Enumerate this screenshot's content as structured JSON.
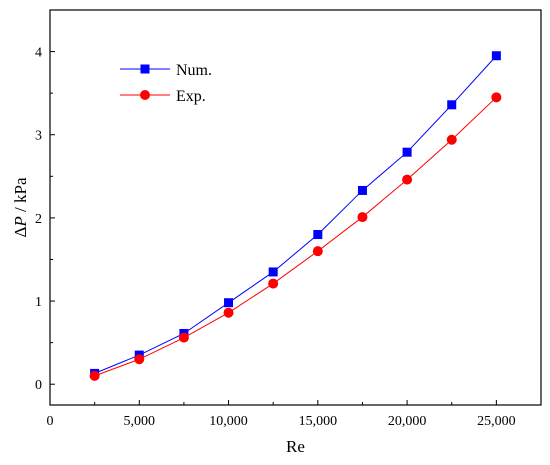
{
  "chart_data": {
    "type": "line",
    "xlabel": "Re",
    "ylabel_parts": [
      "Δ",
      "P",
      " / kPa"
    ],
    "xlim": [
      0,
      27500
    ],
    "ylim": [
      -0.25,
      4.5
    ],
    "x_ticks": [
      0,
      5000,
      10000,
      15000,
      20000,
      25000
    ],
    "x_tick_labels": [
      "0",
      "5,000",
      "10,000",
      "15,000",
      "20,000",
      "25,000"
    ],
    "y_ticks": [
      0,
      1,
      2,
      3,
      4
    ],
    "y_tick_labels": [
      "0",
      "1",
      "2",
      "3",
      "4"
    ],
    "x": [
      2500,
      5000,
      7500,
      10000,
      12500,
      15000,
      17500,
      20000,
      22500,
      25000
    ],
    "series": [
      {
        "name": "Num.",
        "marker": "square",
        "color": "#0000ff",
        "values": [
          0.13,
          0.35,
          0.61,
          0.98,
          1.35,
          1.8,
          2.33,
          2.79,
          3.36,
          3.95
        ]
      },
      {
        "name": "Exp.",
        "marker": "circle",
        "color": "#ff0000",
        "values": [
          0.1,
          0.3,
          0.56,
          0.86,
          1.21,
          1.6,
          2.01,
          2.46,
          2.94,
          3.45
        ]
      }
    ],
    "grid": false,
    "legend_position": "top-left"
  }
}
